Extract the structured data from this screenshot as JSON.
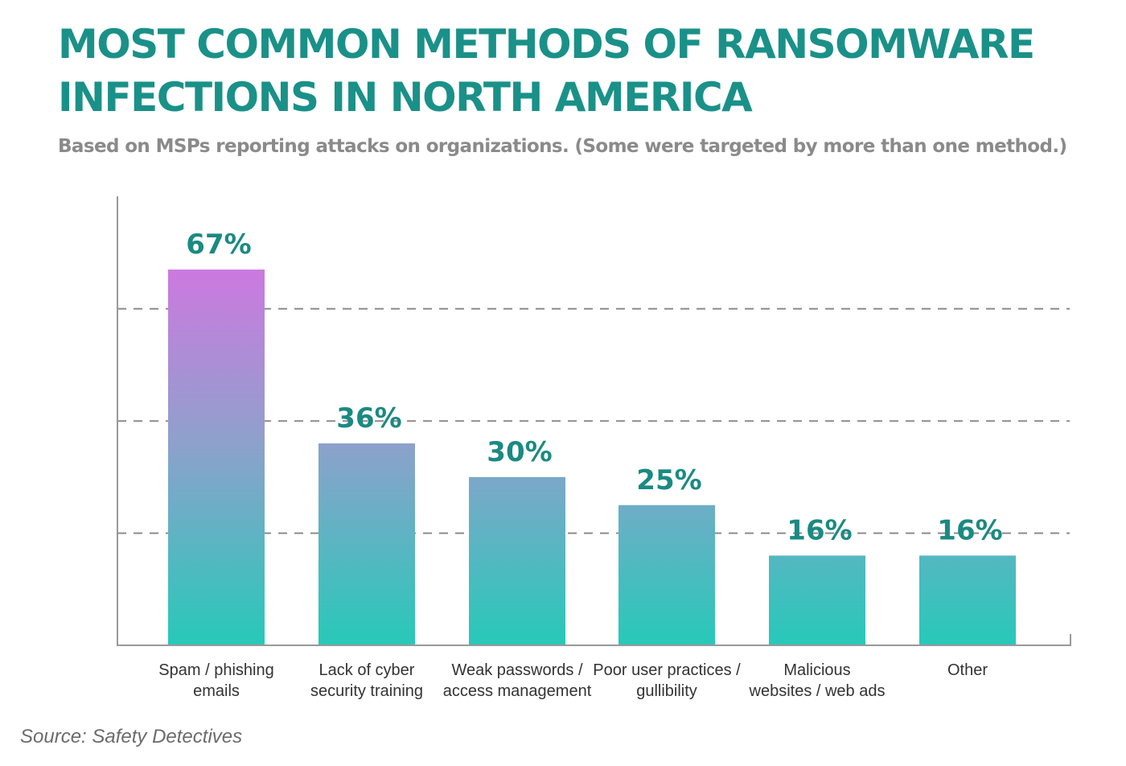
{
  "header": {
    "title": "MOST COMMON METHODS OF RANSOMWARE INFECTIONS IN NORTH AMERICA",
    "subtitle": "Based on MSPs reporting attacks on organizations. (Some were targeted by more than one method.)"
  },
  "source": "Source: Safety Detectives",
  "colors": {
    "title": "#1a9188",
    "value_label": "#1a8a82",
    "bar_gradient_top": "#cc79e0",
    "bar_gradient_mid": "#90a0cc",
    "bar_gradient_bottom": "#27c9b9",
    "axis": "#999999",
    "gridline": "#8c8c8c",
    "category_label": "#333333"
  },
  "chart_data": {
    "type": "bar",
    "categories": [
      [
        "Spam / phishing",
        "emails"
      ],
      [
        "Lack of cyber",
        "security training"
      ],
      [
        "Weak passwords /",
        "access management"
      ],
      [
        "Poor user practices /",
        "gullibility"
      ],
      [
        "Malicious",
        "websites / web ads"
      ],
      [
        "Other"
      ]
    ],
    "values": [
      67,
      36,
      30,
      25,
      16,
      16
    ],
    "value_labels": [
      "67%",
      "36%",
      "30%",
      "25%",
      "16%",
      "16%"
    ],
    "unit": "%",
    "ylim": [
      0,
      80
    ],
    "gridlines": [
      20,
      40,
      60
    ],
    "grid": "horizontal dashed",
    "legend": "none"
  }
}
